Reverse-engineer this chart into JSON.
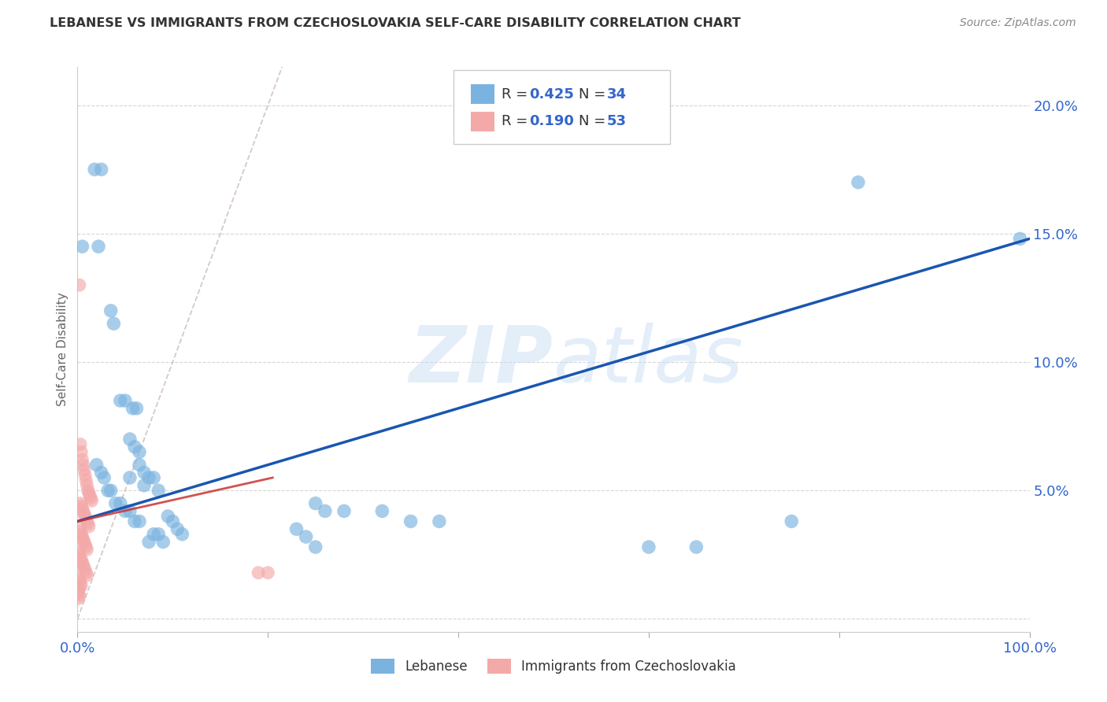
{
  "title": "LEBANESE VS IMMIGRANTS FROM CZECHOSLOVAKIA SELF-CARE DISABILITY CORRELATION CHART",
  "source": "Source: ZipAtlas.com",
  "ylabel_label": "Self-Care Disability",
  "xlim": [
    0,
    1.0
  ],
  "ylim": [
    -0.005,
    0.215
  ],
  "yticks": [
    0.0,
    0.05,
    0.1,
    0.15,
    0.2
  ],
  "ytick_labels": [
    "",
    "5.0%",
    "10.0%",
    "15.0%",
    "20.0%"
  ],
  "xtick_labels": [
    "0.0%",
    "",
    "",
    "",
    "",
    "100.0%"
  ],
  "watermark": "ZIPatlas",
  "blue_color": "#7ab3e0",
  "pink_color": "#f4a9a9",
  "blue_line_color": "#1a56b0",
  "pink_line_color": "#cc3333",
  "r_n_color": "#3366cc",
  "blue_scatter": [
    [
      0.005,
      0.145
    ],
    [
      0.018,
      0.175
    ],
    [
      0.025,
      0.175
    ],
    [
      0.022,
      0.145
    ],
    [
      0.035,
      0.12
    ],
    [
      0.038,
      0.115
    ],
    [
      0.045,
      0.085
    ],
    [
      0.05,
      0.085
    ],
    [
      0.058,
      0.082
    ],
    [
      0.062,
      0.082
    ],
    [
      0.055,
      0.07
    ],
    [
      0.06,
      0.067
    ],
    [
      0.065,
      0.065
    ],
    [
      0.065,
      0.06
    ],
    [
      0.07,
      0.057
    ],
    [
      0.075,
      0.055
    ],
    [
      0.08,
      0.055
    ],
    [
      0.055,
      0.055
    ],
    [
      0.07,
      0.052
    ],
    [
      0.085,
      0.05
    ],
    [
      0.02,
      0.06
    ],
    [
      0.025,
      0.057
    ],
    [
      0.028,
      0.055
    ],
    [
      0.032,
      0.05
    ],
    [
      0.035,
      0.05
    ],
    [
      0.04,
      0.045
    ],
    [
      0.045,
      0.045
    ],
    [
      0.05,
      0.042
    ],
    [
      0.055,
      0.042
    ],
    [
      0.06,
      0.038
    ],
    [
      0.065,
      0.038
    ],
    [
      0.095,
      0.04
    ],
    [
      0.1,
      0.038
    ],
    [
      0.105,
      0.035
    ],
    [
      0.11,
      0.033
    ],
    [
      0.08,
      0.033
    ],
    [
      0.085,
      0.033
    ],
    [
      0.09,
      0.03
    ],
    [
      0.075,
      0.03
    ],
    [
      0.25,
      0.045
    ],
    [
      0.26,
      0.042
    ],
    [
      0.28,
      0.042
    ],
    [
      0.32,
      0.042
    ],
    [
      0.35,
      0.038
    ],
    [
      0.38,
      0.038
    ],
    [
      0.23,
      0.035
    ],
    [
      0.24,
      0.032
    ],
    [
      0.25,
      0.028
    ],
    [
      0.6,
      0.028
    ],
    [
      0.65,
      0.028
    ],
    [
      0.75,
      0.038
    ],
    [
      0.82,
      0.17
    ],
    [
      0.99,
      0.148
    ]
  ],
  "pink_scatter": [
    [
      0.002,
      0.13
    ],
    [
      0.003,
      0.068
    ],
    [
      0.004,
      0.065
    ],
    [
      0.005,
      0.062
    ],
    [
      0.006,
      0.06
    ],
    [
      0.007,
      0.058
    ],
    [
      0.008,
      0.056
    ],
    [
      0.009,
      0.054
    ],
    [
      0.01,
      0.052
    ],
    [
      0.011,
      0.05
    ],
    [
      0.012,
      0.049
    ],
    [
      0.013,
      0.048
    ],
    [
      0.014,
      0.047
    ],
    [
      0.015,
      0.046
    ],
    [
      0.003,
      0.045
    ],
    [
      0.004,
      0.044
    ],
    [
      0.005,
      0.043
    ],
    [
      0.006,
      0.042
    ],
    [
      0.007,
      0.041
    ],
    [
      0.008,
      0.04
    ],
    [
      0.009,
      0.039
    ],
    [
      0.01,
      0.038
    ],
    [
      0.011,
      0.037
    ],
    [
      0.012,
      0.036
    ],
    [
      0.002,
      0.035
    ],
    [
      0.003,
      0.034
    ],
    [
      0.004,
      0.033
    ],
    [
      0.005,
      0.032
    ],
    [
      0.006,
      0.031
    ],
    [
      0.007,
      0.03
    ],
    [
      0.008,
      0.029
    ],
    [
      0.009,
      0.028
    ],
    [
      0.01,
      0.027
    ],
    [
      0.001,
      0.026
    ],
    [
      0.002,
      0.025
    ],
    [
      0.003,
      0.024
    ],
    [
      0.004,
      0.023
    ],
    [
      0.005,
      0.022
    ],
    [
      0.006,
      0.021
    ],
    [
      0.007,
      0.02
    ],
    [
      0.008,
      0.019
    ],
    [
      0.009,
      0.018
    ],
    [
      0.01,
      0.017
    ],
    [
      0.001,
      0.016
    ],
    [
      0.002,
      0.015
    ],
    [
      0.003,
      0.014
    ],
    [
      0.004,
      0.013
    ],
    [
      0.002,
      0.012
    ],
    [
      0.001,
      0.011
    ],
    [
      0.001,
      0.01
    ],
    [
      0.002,
      0.009
    ],
    [
      0.001,
      0.008
    ],
    [
      0.19,
      0.018
    ],
    [
      0.2,
      0.018
    ]
  ],
  "blue_line_x": [
    0.0,
    1.0
  ],
  "blue_line_y": [
    0.038,
    0.148
  ],
  "pink_line_x": [
    0.0,
    0.205
  ],
  "pink_line_y": [
    0.038,
    0.055
  ],
  "dashed_line_x": [
    0.0,
    0.22
  ],
  "dashed_line_y": [
    0.0,
    0.22
  ],
  "background_color": "#ffffff",
  "grid_color": "#cccccc"
}
